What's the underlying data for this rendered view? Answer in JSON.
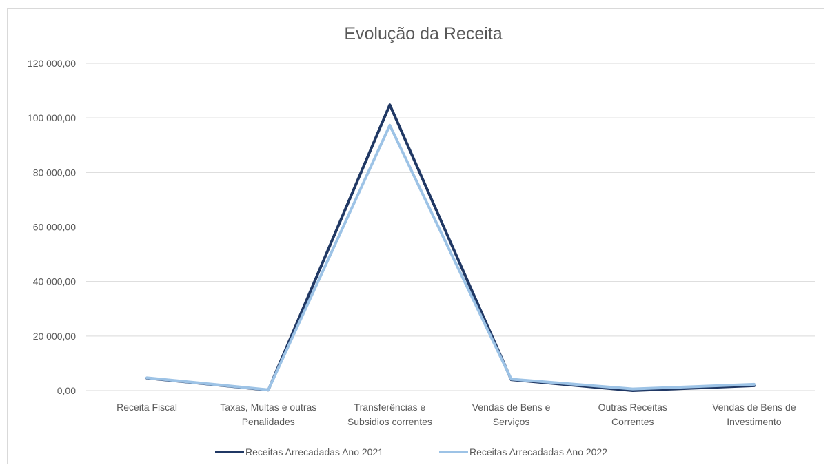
{
  "chart_data": {
    "type": "line",
    "title": "Evolução da Receita",
    "xlabel": "",
    "ylabel": "",
    "categories": [
      [
        "Receita Fiscal"
      ],
      [
        "Taxas, Multas e outras",
        "Penalidades"
      ],
      [
        "Transferências e",
        "Subsidios correntes"
      ],
      [
        "Vendas de Bens e",
        "Serviços"
      ],
      [
        "Outras Receitas",
        "Correntes"
      ],
      [
        "Vendas de Bens de",
        "Investimento"
      ]
    ],
    "ylim": [
      0,
      120000
    ],
    "yticks": [
      0,
      20000,
      40000,
      60000,
      80000,
      100000,
      120000
    ],
    "ytick_labels": [
      "0,00",
      "20 000,00",
      "40 000,00",
      "60 000,00",
      "80 000,00",
      "100 000,00",
      "120 000,00"
    ],
    "grid": true,
    "legend_position": "bottom",
    "series": [
      {
        "name": "Receitas Arrecadadas Ano 2021",
        "color": "#203864",
        "values": [
          4600,
          200,
          104800,
          4000,
          0,
          1800
        ]
      },
      {
        "name": "Receitas Arrecadadas Ano 2022",
        "color": "#9dc3e6",
        "values": [
          4700,
          300,
          97300,
          4200,
          600,
          2300
        ]
      }
    ]
  }
}
